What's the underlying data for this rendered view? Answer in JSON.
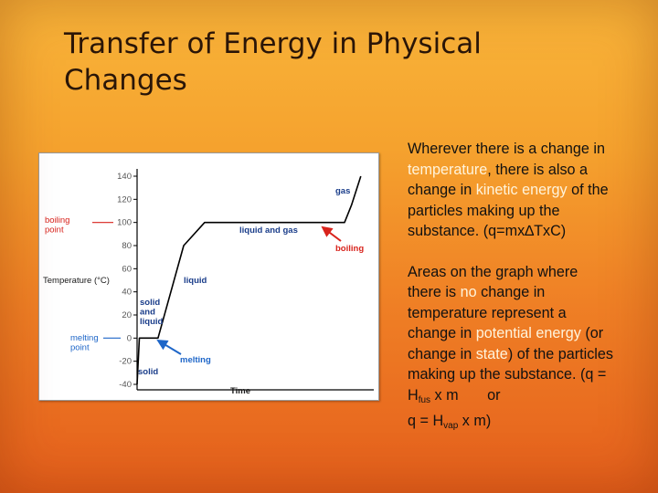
{
  "slide": {
    "title": "Transfer of Energy in Physical Changes",
    "paragraph1": {
      "t1": "Wherever there is a change in ",
      "hl1": "temperature",
      "t2": ", there is also a change in ",
      "hl2": "kinetic energy",
      "t3": " of the particles making up the substance.  (q=mx∆TxC)"
    },
    "paragraph2": {
      "t1": "Areas on the graph where there is ",
      "hl1": "no",
      "t2": " change in temperature represent a change in ",
      "hl2": "potential energy",
      "t3": "  (or change in ",
      "hl3": "state",
      "t4": ") of the particles making up the substance.",
      "formula_line1": "(q = H",
      "sub1": "fus",
      "formula_line1b": " x m       or",
      "formula_line2": "q = H",
      "sub2": "vap",
      "formula_line2b": " x m)"
    },
    "colors": {
      "highlight": "#fff4dc",
      "curve": "#000000",
      "annotation_red": "#d8231c",
      "annotation_blue": "#1e66c8",
      "label_blue": "#1a3d8a"
    }
  },
  "chart_data": {
    "type": "line",
    "xlabel": "Time",
    "ylabel": "Temperature (°C)",
    "ylim": [
      -40,
      140
    ],
    "yticks": [
      -40,
      -20,
      0,
      20,
      40,
      60,
      80,
      100,
      120,
      140
    ],
    "grid": false,
    "series": [
      {
        "x": [
          0,
          1,
          9,
          20,
          29,
          89,
          92,
          96
        ],
        "y": [
          -40,
          0,
          0,
          80,
          100,
          100,
          115,
          140
        ]
      }
    ],
    "annotations": {
      "boiling_point": "boiling\npoint",
      "melting_point": "melting\npoint",
      "gas": "gas",
      "liquid_and_gas": "liquid and gas",
      "boiling": "boiling",
      "liquid": "liquid",
      "solid_and_liquid": "solid\nand\nliquid",
      "melting": "melting",
      "solid": "solid"
    }
  }
}
